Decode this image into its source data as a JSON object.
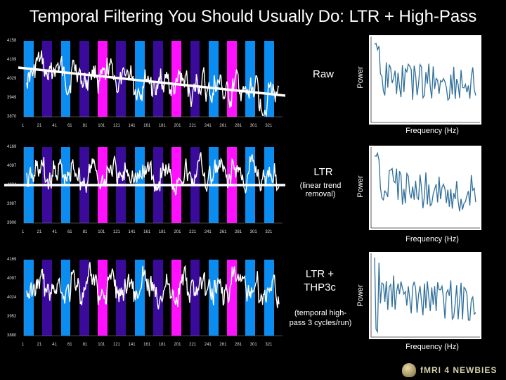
{
  "title": "Temporal Filtering You Should Usually Do: LTR + High-Pass",
  "stimulus_colors": [
    "#0a8cf0",
    "#ff10ff",
    "#7a7a7a",
    "#3a0a9a",
    "#000000"
  ],
  "x_tick_labels": [
    "1",
    "21",
    "41",
    "61",
    "81",
    "101",
    "121",
    "141",
    "161",
    "181",
    "201",
    "221",
    "241",
    "261",
    "281",
    "301",
    "321"
  ],
  "panels": [
    {
      "label_main": "Raw",
      "label_sub": "",
      "y_tick_labels": [
        "4158",
        "4109",
        "4029",
        "3949",
        "3870"
      ],
      "power_label": "Power",
      "freq_label": "Frequency (Hz)"
    },
    {
      "label_main": "LTR",
      "label_sub": "(linear trend removal)",
      "y_tick_labels": [
        "4169",
        "4097",
        "4024",
        "3987",
        "3900"
      ],
      "power_label": "Power",
      "freq_label": "Frequency (Hz)"
    },
    {
      "label_main": "LTR + THP3c",
      "label_sub": "(temporal high-pass 3 cycles/run)",
      "y_tick_labels": [
        "4169",
        "4097",
        "4024",
        "3952",
        "3880"
      ],
      "power_label": "Power",
      "freq_label": "Frequency (Hz)"
    }
  ],
  "logo_text": "fMRI 4 NEWBIES"
}
